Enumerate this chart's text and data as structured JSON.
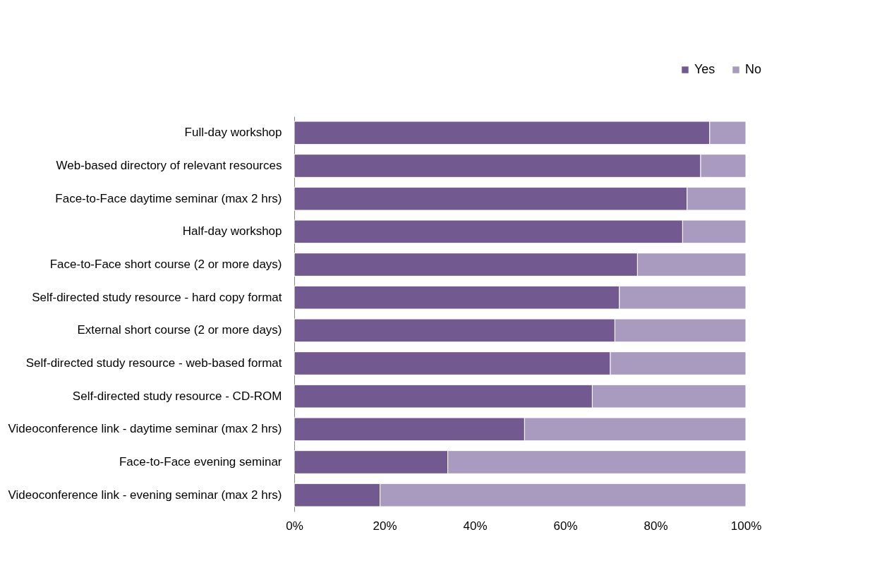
{
  "chart_data": {
    "type": "bar",
    "orientation": "horizontal",
    "stacked": true,
    "legend": "top right",
    "grid": false,
    "categories": [
      "Full-day workshop",
      "Web-based directory of relevant resources",
      "Face-to-Face daytime seminar (max 2 hrs)",
      "Half-day workshop",
      "Face-to-Face short course (2 or more days)",
      "Self-directed study resource - hard copy format",
      "External short course (2 or more days)",
      "Self-directed study resource - web-based format",
      "Self-directed study resource - CD-ROM",
      "Videoconference link - daytime seminar (max 2 hrs)",
      "Face-to-Face evening seminar",
      "Videoconference link - evening seminar (max 2 hrs)"
    ],
    "series": [
      {
        "name": "Yes",
        "color": "#725a91",
        "values": [
          92,
          90,
          87,
          86,
          76,
          72,
          71,
          70,
          66,
          51,
          34,
          19
        ]
      },
      {
        "name": "No",
        "color": "#a99bbf",
        "values": [
          8,
          10,
          13,
          14,
          24,
          28,
          29,
          30,
          34,
          49,
          66,
          81
        ]
      }
    ],
    "xlim": [
      0,
      100
    ],
    "xticks": [
      {
        "value": 0,
        "label": "0%"
      },
      {
        "value": 20,
        "label": "20%"
      },
      {
        "value": 40,
        "label": "40%"
      },
      {
        "value": 60,
        "label": "60%"
      },
      {
        "value": 80,
        "label": "80%"
      },
      {
        "value": 100,
        "label": "100%"
      }
    ]
  }
}
